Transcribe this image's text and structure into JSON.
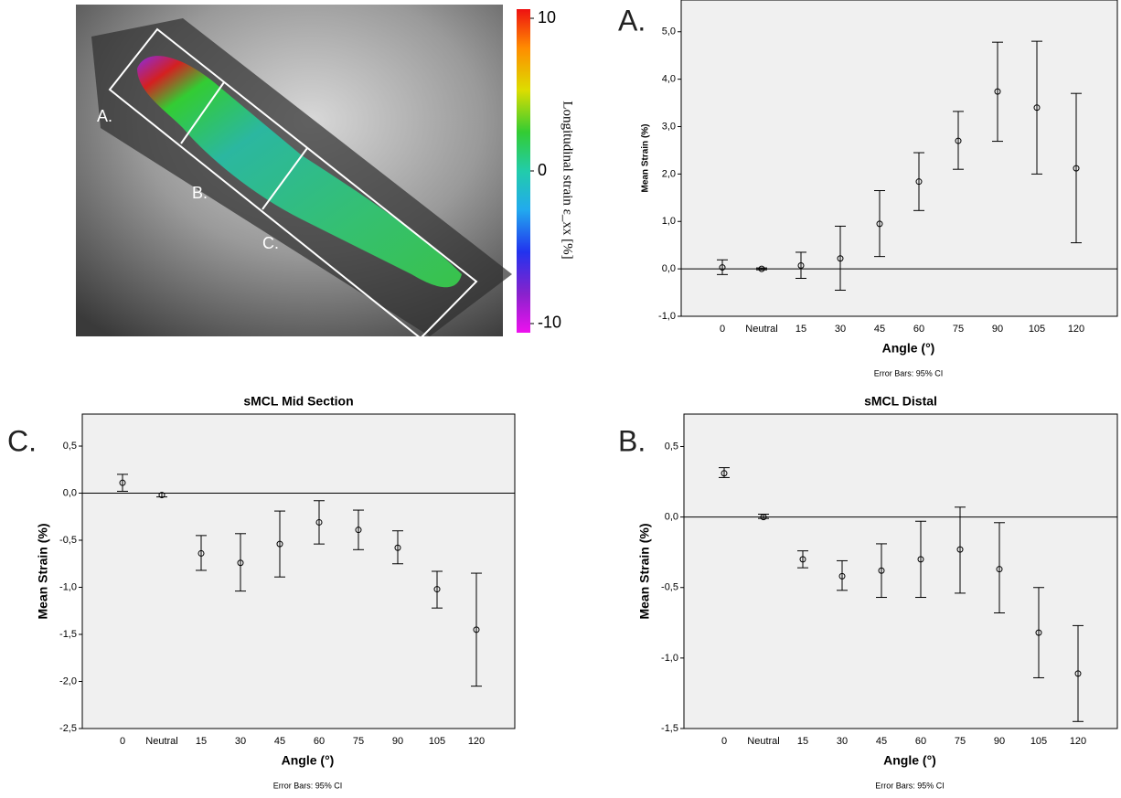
{
  "photo": {
    "region_labels": [
      "A.",
      "B.",
      "C."
    ],
    "colorbar": {
      "label": "Longitudinal strain ε_xx [%]",
      "lim": [
        -10.6,
        10.6
      ],
      "ticks": [
        10,
        0,
        -10
      ]
    }
  },
  "chart_data": [
    {
      "type": "errorbar",
      "panel": "A.",
      "x_label": "Angle (°)",
      "y_label": "Mean Strain (%)",
      "note": "Error Bars: 95% CI",
      "categories": [
        "0",
        "Neutral",
        "15",
        "30",
        "45",
        "60",
        "75",
        "90",
        "105",
        "120"
      ],
      "values": [
        0.03,
        0.0,
        0.07,
        0.22,
        0.95,
        1.84,
        2.7,
        3.74,
        3.4,
        2.12
      ],
      "ci_low": [
        -0.12,
        -0.02,
        -0.2,
        -0.45,
        0.26,
        1.23,
        2.1,
        2.69,
        2.0,
        0.55
      ],
      "ci_high": [
        0.19,
        0.02,
        0.35,
        0.9,
        1.65,
        2.45,
        3.32,
        4.78,
        4.8,
        3.7
      ],
      "ylim": [
        -1,
        5.67
      ],
      "yticks": [
        {
          "value": -1,
          "label": "-1,0"
        },
        {
          "value": 0,
          "label": "0,0"
        },
        {
          "value": 1,
          "label": "1,0"
        },
        {
          "value": 2,
          "label": "2,0"
        },
        {
          "value": 3,
          "label": "3,0"
        },
        {
          "value": 4,
          "label": "4,0"
        },
        {
          "value": 5,
          "label": "5,0"
        }
      ],
      "reference_line": 0
    },
    {
      "type": "errorbar",
      "panel": "C.",
      "title": "sMCL Mid Section",
      "x_label": "Angle (°)",
      "y_label": "Mean Strain (%)",
      "note": "Error Bars: 95% CI",
      "categories": [
        "0",
        "Neutral",
        "15",
        "30",
        "45",
        "60",
        "75",
        "90",
        "105",
        "120"
      ],
      "values": [
        0.11,
        -0.02,
        -0.64,
        -0.74,
        -0.54,
        -0.31,
        -0.39,
        -0.58,
        -1.02,
        -1.45
      ],
      "ci_low": [
        0.02,
        -0.04,
        -0.82,
        -1.04,
        -0.89,
        -0.54,
        -0.6,
        -0.75,
        -1.22,
        -2.05
      ],
      "ci_high": [
        0.2,
        0.0,
        -0.45,
        -0.43,
        -0.19,
        -0.08,
        -0.18,
        -0.4,
        -0.83,
        -0.85
      ],
      "ylim": [
        -2.5,
        0.84
      ],
      "yticks": [
        {
          "value": -2.5,
          "label": "-2,5"
        },
        {
          "value": -2,
          "label": "-2,0"
        },
        {
          "value": -1.5,
          "label": "-1,5"
        },
        {
          "value": -1,
          "label": "-1,0"
        },
        {
          "value": -0.5,
          "label": "-0,5"
        },
        {
          "value": 0,
          "label": "0,0"
        },
        {
          "value": 0.5,
          "label": "0,5"
        }
      ],
      "reference_line": 0
    },
    {
      "type": "errorbar",
      "panel": "B.",
      "title": "sMCL Distal",
      "x_label": "Angle (°)",
      "y_label": "Mean Strain (%)",
      "note": "Error Bars: 95% CI",
      "categories": [
        "0",
        "Neutral",
        "15",
        "30",
        "45",
        "60",
        "75",
        "90",
        "105",
        "120"
      ],
      "values": [
        0.31,
        0.0,
        -0.3,
        -0.42,
        -0.38,
        -0.3,
        -0.23,
        -0.37,
        -0.82,
        -1.11
      ],
      "ci_low": [
        0.28,
        -0.01,
        -0.36,
        -0.52,
        -0.57,
        -0.57,
        -0.54,
        -0.68,
        -1.14,
        -1.45
      ],
      "ci_high": [
        0.35,
        0.02,
        -0.24,
        -0.31,
        -0.19,
        -0.03,
        0.07,
        -0.04,
        -0.5,
        -0.77
      ],
      "ylim": [
        -1.5,
        0.73
      ],
      "yticks": [
        {
          "value": -1.5,
          "label": "-1,5"
        },
        {
          "value": -1,
          "label": "-1,0"
        },
        {
          "value": -0.5,
          "label": "-0,5"
        },
        {
          "value": 0,
          "label": "0,0"
        },
        {
          "value": 0.5,
          "label": "0,5"
        }
      ],
      "reference_line": 0
    }
  ]
}
